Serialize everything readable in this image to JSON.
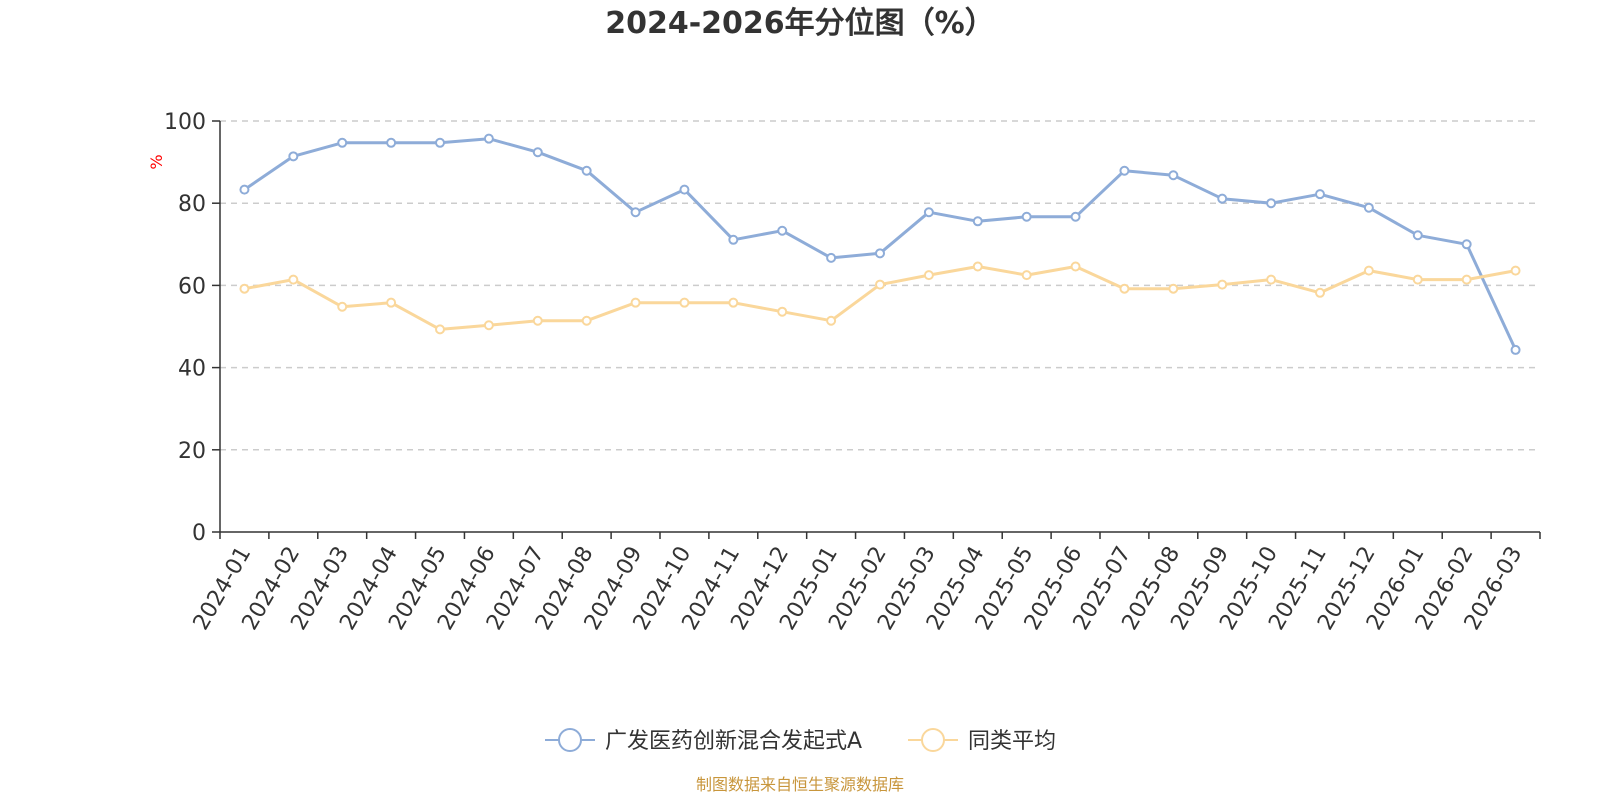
{
  "chart_data": {
    "type": "line",
    "title": "2024-2026年分位图（%）",
    "ylabel": "%",
    "xlabel": "",
    "ylim": [
      0,
      100
    ],
    "yticks": [
      0,
      20,
      40,
      60,
      80,
      100
    ],
    "grid": true,
    "legend_position": "bottom",
    "categories": [
      "2024-01",
      "2024-02",
      "2024-03",
      "2024-04",
      "2024-05",
      "2024-06",
      "2024-07",
      "2024-08",
      "2024-09",
      "2024-10",
      "2024-11",
      "2024-12",
      "2025-01",
      "2025-02",
      "2025-03",
      "2025-04",
      "2025-05",
      "2025-06",
      "2025-07",
      "2025-08",
      "2025-09",
      "2025-10",
      "2025-11",
      "2025-12",
      "2026-01",
      "2026-02",
      "2026-03"
    ],
    "series": [
      {
        "name": "广发医药创新混合发起式A",
        "color": "#8eacd8",
        "values": [
          83.3,
          91.4,
          94.7,
          94.7,
          94.7,
          95.7,
          92.4,
          87.9,
          77.8,
          83.3,
          71.1,
          73.3,
          66.7,
          67.8,
          77.8,
          75.6,
          76.7,
          76.7,
          87.9,
          86.8,
          81.1,
          80.0,
          82.2,
          78.9,
          72.2,
          70.0,
          44.3
        ]
      },
      {
        "name": "同类平均",
        "color": "#fad79b",
        "values": [
          59.2,
          61.4,
          54.8,
          55.8,
          49.3,
          50.3,
          51.4,
          51.4,
          55.8,
          55.8,
          55.8,
          53.6,
          51.4,
          60.2,
          62.5,
          64.6,
          62.5,
          64.6,
          59.2,
          59.2,
          60.2,
          61.4,
          58.2,
          63.6,
          61.4,
          61.4,
          63.6
        ]
      }
    ]
  },
  "source_text": "制图数据来自恒生聚源数据库"
}
